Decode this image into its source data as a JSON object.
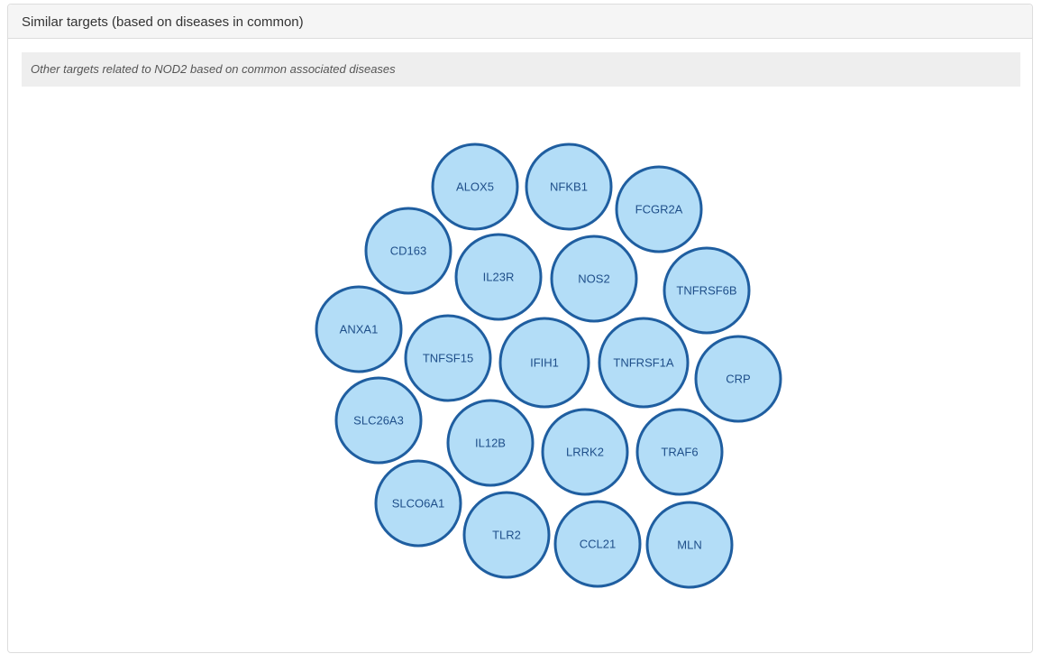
{
  "panel": {
    "title": "Similar targets (based on diseases in common)",
    "subtitle": "Other targets related to NOD2 based on common associated diseases"
  },
  "bubbles": [
    {
      "label": "ALOX5"
    },
    {
      "label": "NFKB1"
    },
    {
      "label": "FCGR2A"
    },
    {
      "label": "CD163"
    },
    {
      "label": "IL23R"
    },
    {
      "label": "NOS2"
    },
    {
      "label": "TNFRSF6B"
    },
    {
      "label": "ANXA1"
    },
    {
      "label": "TNFSF15"
    },
    {
      "label": "IFIH1"
    },
    {
      "label": "TNFRSF1A"
    },
    {
      "label": "CRP"
    },
    {
      "label": "SLC26A3"
    },
    {
      "label": "IL12B"
    },
    {
      "label": "LRRK2"
    },
    {
      "label": "TRAF6"
    },
    {
      "label": "SLCO6A1"
    },
    {
      "label": "TLR2"
    },
    {
      "label": "CCL21"
    },
    {
      "label": "MLN"
    }
  ],
  "colors": {
    "bubble_fill": "#b3ddf7",
    "bubble_stroke": "#1f5ea0",
    "bubble_text": "#1f4f8a"
  }
}
